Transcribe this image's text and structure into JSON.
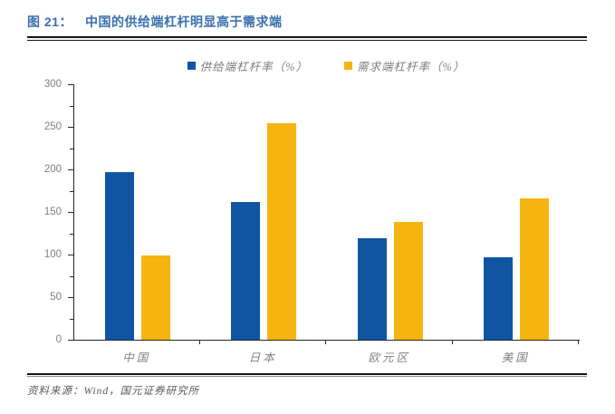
{
  "header": {
    "figure_label": "图 21：",
    "title": "中国的供给端杠杆明显高于需求端",
    "title_color": "#3a6fac"
  },
  "chart_data": {
    "type": "bar",
    "categories": [
      "中国",
      "日本",
      "欧元区",
      "美国"
    ],
    "series": [
      {
        "name": "供给端杠杆率（%）",
        "color": "#1055a4",
        "values": [
          197,
          162,
          119,
          97
        ]
      },
      {
        "name": "需求端杠杆率（%）",
        "color": "#f5b40f",
        "values": [
          99,
          254,
          138,
          166
        ]
      }
    ],
    "ylim": [
      0,
      300
    ],
    "yticks": [
      0,
      50,
      100,
      150,
      200,
      250,
      300
    ],
    "minor_tick_step": 25,
    "legend_position": "top",
    "grid": false
  },
  "footer": {
    "source": "资料来源：Wind，国元证券研究所"
  }
}
